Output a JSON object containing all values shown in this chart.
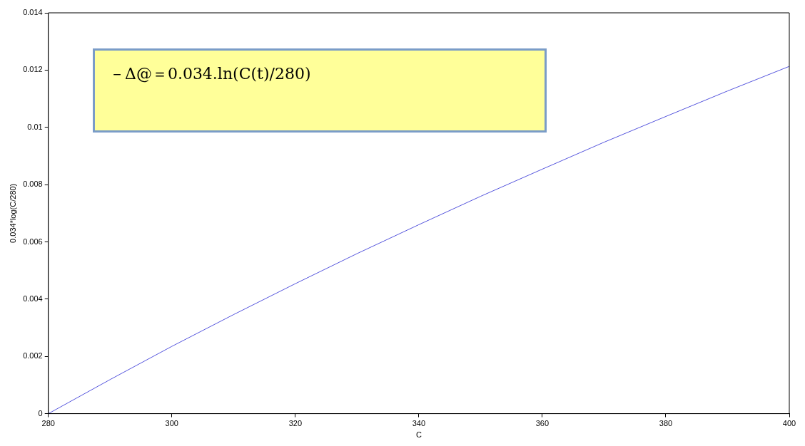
{
  "chart_data": {
    "type": "line",
    "xlabel": "C",
    "ylabel": "0.034*log(C/280)",
    "annotations": [
      "－Δ@＝0.034.ln(C(t)/280)"
    ],
    "x": [
      280,
      290,
      300,
      310,
      320,
      330,
      340,
      350,
      360,
      370,
      380,
      390,
      400
    ],
    "series": [
      {
        "color": "#5555dd",
        "values": [
          0,
          0.00119,
          0.00235,
          0.00346,
          0.00454,
          0.00559,
          0.0066,
          0.00759,
          0.00854,
          0.00948,
          0.01038,
          0.01127,
          0.01213
        ]
      }
    ],
    "xlim": [
      280,
      400
    ],
    "xticks": [
      280,
      300,
      320,
      340,
      360,
      380,
      400
    ],
    "ylim": [
      0,
      0.014
    ],
    "yticks": [
      0,
      0.002,
      0.004,
      0.006,
      0.008,
      0.01,
      0.012,
      0.014
    ],
    "marker": "none",
    "line_style": "solid",
    "legend": false
  }
}
